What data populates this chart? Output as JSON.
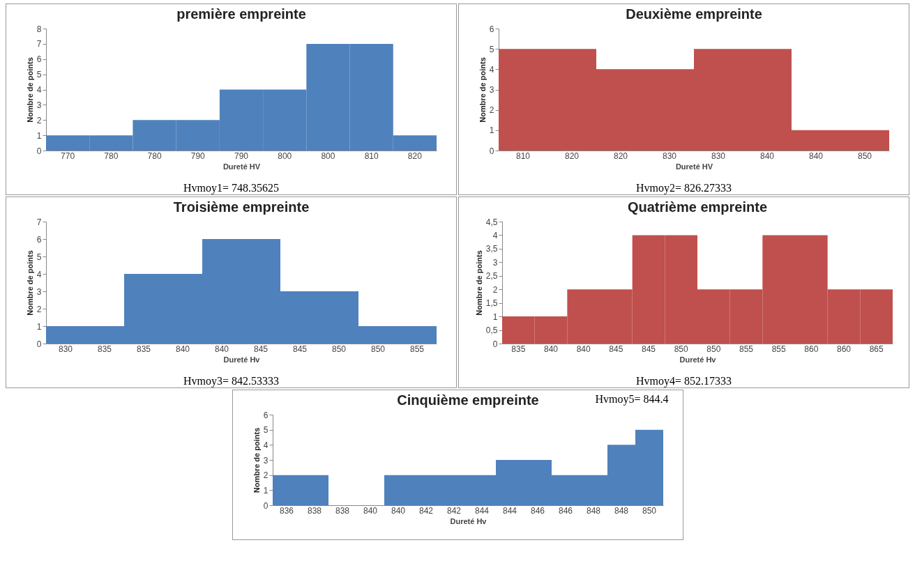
{
  "chart_data": [
    {
      "type": "bar",
      "title": "première empreinte",
      "xlabel": "Dureté HV",
      "ylabel": "Nombre de points",
      "categories": [
        "770",
        "780",
        "780",
        "790",
        "790",
        "800",
        "800",
        "810",
        "820"
      ],
      "values": [
        1,
        1,
        2,
        2,
        4,
        4,
        7,
        7,
        1
      ],
      "color": "#4f81bd",
      "ylim": [
        0,
        8
      ],
      "yticks": [
        0,
        1,
        2,
        3,
        4,
        5,
        6,
        7,
        8
      ],
      "grid": false,
      "annotations": [
        "Hvmoy1= 748.35625"
      ]
    },
    {
      "type": "bar",
      "title": "Deuxième empreinte",
      "xlabel": "Dureté HV",
      "ylabel": "Nombre de points",
      "categories": [
        "810",
        "820",
        "820",
        "830",
        "830",
        "840",
        "840",
        "850"
      ],
      "values": [
        5,
        5,
        4,
        4,
        5,
        5,
        1,
        1
      ],
      "color": "#c0504d",
      "ylim": [
        0,
        6
      ],
      "yticks": [
        0,
        1,
        2,
        3,
        4,
        5,
        6
      ],
      "grid": false,
      "annotations": [
        "Hvmoy2= 826.27333"
      ]
    },
    {
      "type": "bar",
      "title": "Troisième empreinte",
      "xlabel": "Dureté Hv",
      "ylabel": "Nombre de points",
      "categories": [
        "830",
        "835",
        "835",
        "840",
        "840",
        "845",
        "845",
        "850",
        "850",
        "855"
      ],
      "values": [
        1,
        1,
        4,
        4,
        6,
        6,
        3,
        3,
        1,
        1
      ],
      "color": "#4f81bd",
      "ylim": [
        0,
        7
      ],
      "yticks": [
        0,
        1,
        2,
        3,
        4,
        5,
        6,
        7
      ],
      "grid": false,
      "annotations": [
        "Hvmoy3= 842.53333"
      ]
    },
    {
      "type": "bar",
      "title": "Quatrième empreinte",
      "xlabel": "Dureté Hv",
      "ylabel": "Nombre de points",
      "categories": [
        "835",
        "840",
        "840",
        "845",
        "845",
        "850",
        "850",
        "855",
        "855",
        "860",
        "860",
        "865"
      ],
      "values": [
        1,
        1,
        2,
        2,
        4,
        4,
        2,
        2,
        4,
        4,
        2,
        2
      ],
      "color": "#c0504d",
      "ylim": [
        0,
        4.5
      ],
      "yticks": [
        0,
        {
          "value": 0.5,
          "label": "0,5"
        },
        1,
        {
          "value": 1.5,
          "label": "1,5"
        },
        2,
        {
          "value": 2.5,
          "label": "2,5"
        },
        3,
        {
          "value": 3.5,
          "label": "3,5"
        },
        4,
        {
          "value": 4.5,
          "label": "4,5"
        }
      ],
      "grid": false,
      "annotations": [
        "Hvmoy4= 852.17333"
      ]
    },
    {
      "type": "bar",
      "title": "Cinquième empreinte",
      "xlabel": "Dureté Hv",
      "ylabel": "Nombre de points",
      "categories": [
        "836",
        "838",
        "838",
        "840",
        "840",
        "842",
        "842",
        "844",
        "844",
        "846",
        "846",
        "848",
        "848",
        "850"
      ],
      "values": [
        2,
        2,
        0,
        0,
        2,
        2,
        2,
        2,
        3,
        3,
        2,
        2,
        4,
        5
      ],
      "color": "#4f81bd",
      "ylim": [
        0,
        6
      ],
      "yticks": [
        0,
        1,
        2,
        3,
        4,
        5,
        6
      ],
      "grid": false,
      "annotations": [
        "Hvmoy5= 844.4"
      ]
    }
  ]
}
